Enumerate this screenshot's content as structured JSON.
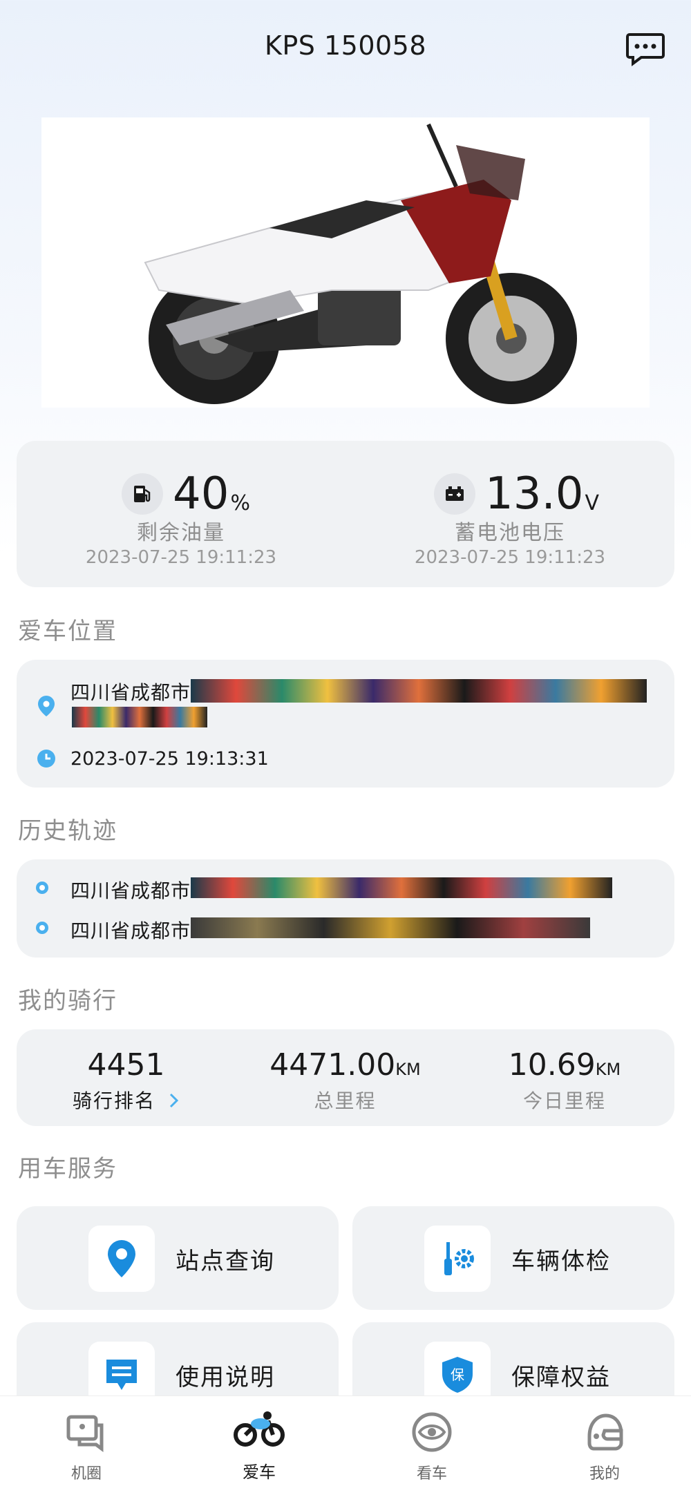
{
  "header": {
    "title": "KPS 150058",
    "message_icon": "message-dots-icon"
  },
  "status": {
    "fuel": {
      "value": "40",
      "unit": "%",
      "label": "剩余油量",
      "time": "2023-07-25 19:11:23",
      "icon": "fuel-pump-icon"
    },
    "battery": {
      "value": "13.0",
      "unit": "V",
      "label": "蓄电池电压",
      "time": "2023-07-25 19:11:23",
      "icon": "battery-icon"
    }
  },
  "location": {
    "section_title": "爱车位置",
    "address_prefix": "四川省成都市",
    "time": "2023-07-25 19:13:31"
  },
  "history": {
    "section_title": "历史轨迹",
    "items": [
      {
        "address_prefix": "四川省成都市"
      },
      {
        "address_prefix": "四川省成都市"
      }
    ]
  },
  "riding": {
    "section_title": "我的骑行",
    "rank": {
      "value": "4451",
      "label": "骑行排名"
    },
    "total": {
      "value": "4471.00",
      "unit": "KM",
      "label": "总里程"
    },
    "today": {
      "value": "10.69",
      "unit": "KM",
      "label": "今日里程"
    }
  },
  "services": {
    "section_title": "用车服务",
    "items": [
      {
        "label": "站点查询",
        "icon": "map-pin-icon"
      },
      {
        "label": "车辆体检",
        "icon": "vehicle-check-icon"
      },
      {
        "label": "使用说明",
        "icon": "manual-icon"
      },
      {
        "label": "保障权益",
        "icon": "shield-icon"
      }
    ]
  },
  "tabs": [
    {
      "label": "机圈",
      "icon": "chat-square-icon"
    },
    {
      "label": "爱车",
      "icon": "motorcycle-icon",
      "active": true
    },
    {
      "label": "看车",
      "icon": "eye-icon"
    },
    {
      "label": "我的",
      "icon": "helmet-icon"
    }
  ],
  "colors": {
    "accent": "#1a8cdd",
    "card_bg": "#f0f2f4",
    "muted_text": "#8e8e8e"
  }
}
